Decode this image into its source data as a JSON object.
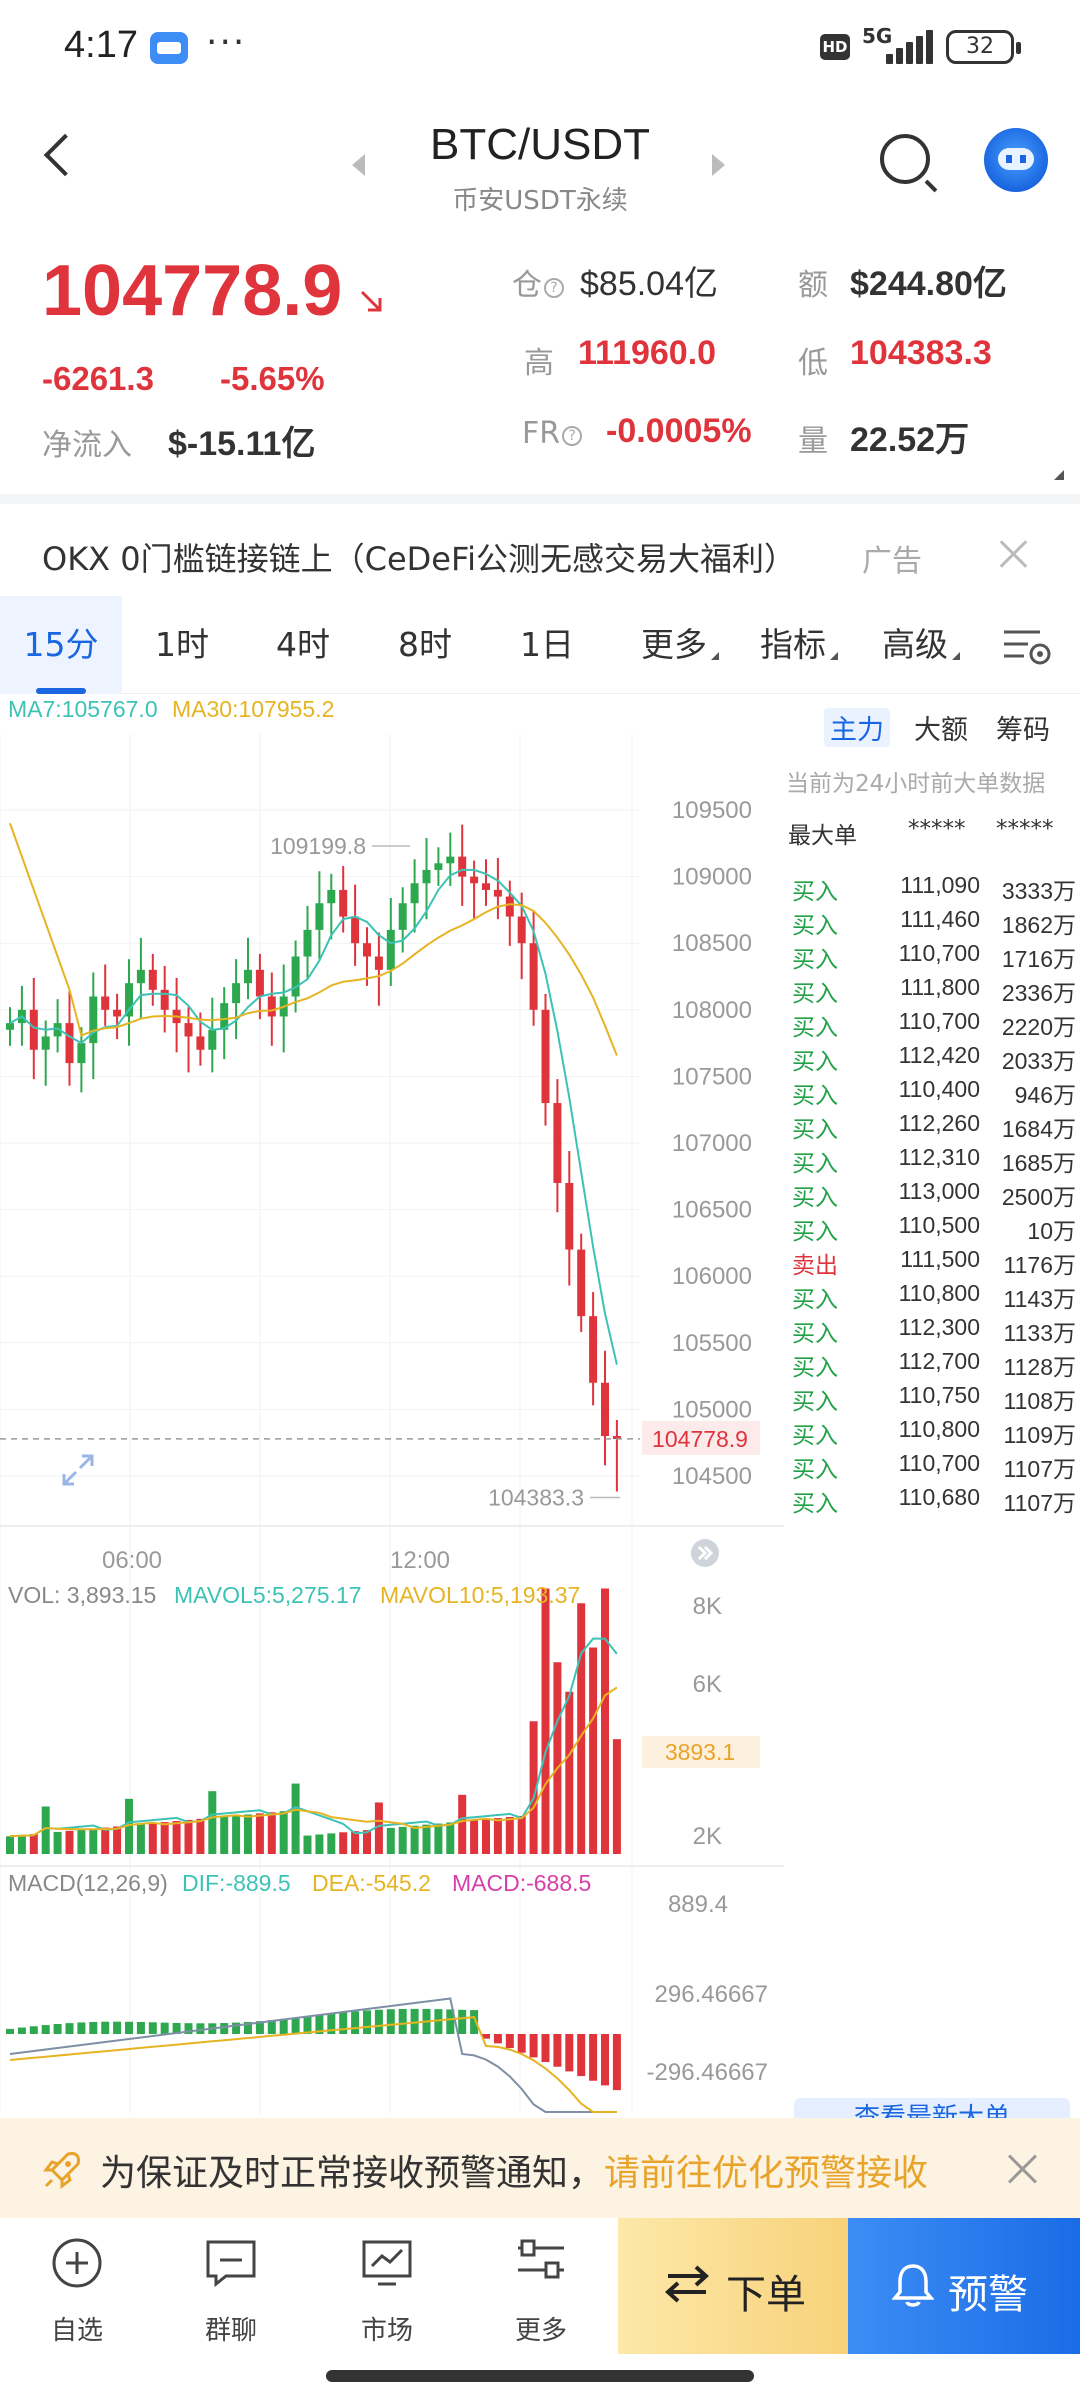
{
  "status_bar": {
    "time": "4:17",
    "dots": "···",
    "hd": "HD",
    "network": "5G",
    "battery": "32"
  },
  "header": {
    "pair": "BTC/USDT",
    "exchange": "币安USDT永续"
  },
  "price": {
    "last": "104778.9",
    "change": "-6261.3",
    "change_pct": "-5.65%",
    "netflow_label": "净流入",
    "netflow_value": "$-15.11亿"
  },
  "stats": {
    "oi_label": "仓",
    "oi_value": "$85.04亿",
    "turnover_label": "额",
    "turnover_value": "$244.80亿",
    "high_label": "高",
    "high_value": "111960.0",
    "low_label": "低",
    "low_value": "104383.3",
    "fr_label": "FR",
    "fr_value": "-0.0005%",
    "volume_label": "量",
    "volume_value": "22.52万"
  },
  "ad": {
    "text": "OKX 0门槛链接链上（CeDeFi公测无感交易大福利）",
    "tag": "广告"
  },
  "tabs": [
    {
      "label": "15分"
    },
    {
      "label": "1时"
    },
    {
      "label": "4时"
    },
    {
      "label": "8时"
    },
    {
      "label": "1日"
    },
    {
      "label": "更多"
    },
    {
      "label": "指标"
    },
    {
      "label": "高级"
    }
  ],
  "chart_data": {
    "type": "candlestick",
    "legend": {
      "ma7": "MA7:105767.0",
      "ma30": "MA30:107955.2"
    },
    "price_ticks": [
      "109500",
      "109000",
      "108500",
      "108000",
      "107500",
      "107000",
      "106500",
      "106000",
      "105500",
      "105000",
      "104500"
    ],
    "price_tick_values": [
      109500,
      109000,
      108500,
      108000,
      107500,
      107000,
      106500,
      106000,
      105500,
      105000,
      104500
    ],
    "x_ticks": [
      "06:00",
      "12:00"
    ],
    "current_price_label": "104778.9",
    "high_marker": "109199.8",
    "low_marker": "104383.3",
    "colors": {
      "up": "#2ea84f",
      "down": "#e0343d",
      "ma7": "#3cc3b5",
      "ma30": "#e6b422"
    },
    "volume": {
      "legend_vol": "VOL: 3,893.15",
      "legend_mavol5": "MAVOL5:5,275.17",
      "legend_mavol10": "MAVOL10:5,193.37",
      "ticks": [
        "8K",
        "6K",
        "2K"
      ],
      "current_label": "3893.1"
    },
    "macd": {
      "legend_title": "MACD(12,26,9)",
      "legend_dif": "DIF:-889.5",
      "legend_dea": "DEA:-545.2",
      "legend_macd": "MACD:-688.5",
      "ticks": [
        "889.4",
        "296.46667",
        "-296.46667"
      ]
    }
  },
  "order_panel": {
    "tabs": [
      "主力",
      "大额",
      "筹码"
    ],
    "note": "当前为24小时前大单数据",
    "header": {
      "label": "最大单",
      "col1": "*****",
      "col2": "*****"
    },
    "rows": [
      {
        "side": "买入",
        "price": "111,090",
        "amount": "3333万"
      },
      {
        "side": "买入",
        "price": "111,460",
        "amount": "1862万"
      },
      {
        "side": "买入",
        "price": "110,700",
        "amount": "1716万"
      },
      {
        "side": "买入",
        "price": "111,800",
        "amount": "2336万"
      },
      {
        "side": "买入",
        "price": "110,700",
        "amount": "2220万"
      },
      {
        "side": "买入",
        "price": "112,420",
        "amount": "2033万"
      },
      {
        "side": "买入",
        "price": "110,400",
        "amount": "946万"
      },
      {
        "side": "买入",
        "price": "112,260",
        "amount": "1684万"
      },
      {
        "side": "买入",
        "price": "112,310",
        "amount": "1685万"
      },
      {
        "side": "买入",
        "price": "113,000",
        "amount": "2500万"
      },
      {
        "side": "买入",
        "price": "110,500",
        "amount": "10万"
      },
      {
        "side": "卖出",
        "price": "111,500",
        "amount": "1176万"
      },
      {
        "side": "买入",
        "price": "110,800",
        "amount": "1143万"
      },
      {
        "side": "买入",
        "price": "112,300",
        "amount": "1133万"
      },
      {
        "side": "买入",
        "price": "112,700",
        "amount": "1128万"
      },
      {
        "side": "买入",
        "price": "110,750",
        "amount": "1108万"
      },
      {
        "side": "买入",
        "price": "110,800",
        "amount": "1109万"
      },
      {
        "side": "买入",
        "price": "110,700",
        "amount": "1107万"
      },
      {
        "side": "买入",
        "price": "110,680",
        "amount": "1107万"
      }
    ],
    "view_latest": "查看最新大单"
  },
  "alert_banner": {
    "text": "为保证及时正常接收预警通知，",
    "link": "请前往优化预警接收"
  },
  "bottom_nav": {
    "watchlist": "自选",
    "group_chat": "群聊",
    "market": "市场",
    "more": "更多",
    "order": "下单",
    "alert": "预警"
  }
}
